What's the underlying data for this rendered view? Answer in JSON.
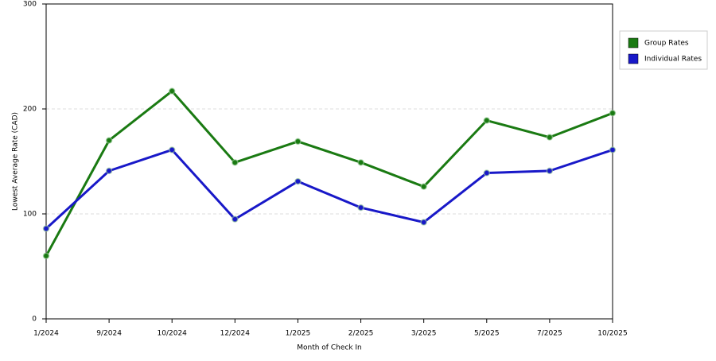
{
  "chart_data": {
    "type": "line",
    "xlabel": "Month of Check In",
    "ylabel": "Lowest Average Rate (CAD)",
    "categories": [
      "1/2024",
      "9/2024",
      "10/2024",
      "12/2024",
      "1/2025",
      "2/2025",
      "3/2025",
      "5/2025",
      "7/2025",
      "10/2025"
    ],
    "series": [
      {
        "name": "Group Rates",
        "color": "#1a7a12",
        "values": [
          60,
          170,
          217,
          149,
          169,
          149,
          126,
          189,
          173,
          196
        ]
      },
      {
        "name": "Individual Rates",
        "color": "#1818c8",
        "values": [
          86,
          141,
          161,
          95,
          131,
          106,
          92,
          139,
          141,
          161
        ]
      }
    ],
    "ylim": [
      0,
      300
    ],
    "yticks": [
      0,
      100,
      200,
      300
    ],
    "grid": true
  }
}
